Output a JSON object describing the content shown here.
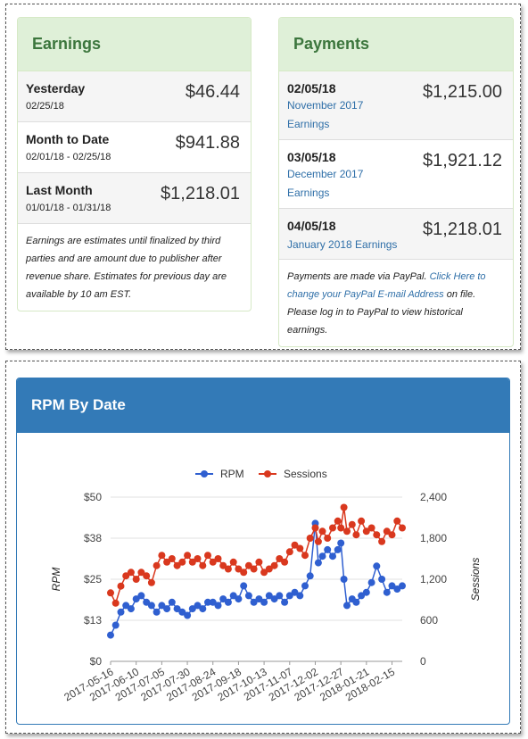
{
  "earnings": {
    "title": "Earnings",
    "rows": [
      {
        "label": "Yesterday",
        "date": "02/25/18",
        "amount": "$46.44"
      },
      {
        "label": "Month to Date",
        "date": "02/01/18 - 02/25/18",
        "amount": "$941.88"
      },
      {
        "label": "Last Month",
        "date": "01/01/18 - 01/31/18",
        "amount": "$1,218.01"
      }
    ],
    "note": "Earnings are estimates until finalized by third parties and are amount due to publisher after revenue share. Estimates for previous day are available by 10 am EST."
  },
  "payments": {
    "title": "Payments",
    "rows": [
      {
        "date": "02/05/18",
        "period_line1": "November 2017",
        "period_line2": "Earnings",
        "amount": "$1,215.00"
      },
      {
        "date": "03/05/18",
        "period_line1": "December 2017",
        "period_line2": "Earnings",
        "amount": "$1,921.12"
      },
      {
        "date": "04/05/18",
        "period_line1": "January 2018 Earnings",
        "period_line2": "",
        "amount": "$1,218.01"
      }
    ],
    "note_prefix": "Payments are made via PayPal. ",
    "note_link": "Click Here to change your PayPal E-mail Address",
    "note_suffix": " on file.",
    "note_line2": "Please log in to PayPal to view historical earnings."
  },
  "rpm_panel": {
    "title": "RPM By Date"
  },
  "chart_data": {
    "type": "line",
    "legend_position": "top-center",
    "colors": {
      "RPM": "#2f5fd0",
      "Sessions": "#d9381e"
    },
    "ylabel_left": "RPM",
    "ylabel_right": "Sessions",
    "y_left_ticks": [
      "$50",
      "$38",
      "$25",
      "$13",
      "$0"
    ],
    "y_right_ticks": [
      "2,400",
      "1,800",
      "1,200",
      "600",
      "0"
    ],
    "ylim_left": [
      0,
      50
    ],
    "ylim_right": [
      0,
      2400
    ],
    "x_ticks": [
      "2017-05-16",
      "2017-06-10",
      "2017-07-05",
      "2017-07-30",
      "2017-08-24",
      "2017-09-18",
      "2017-10-13",
      "2017-11-07",
      "2017-12-02",
      "2017-12-27",
      "2018-01-21",
      "2018-02-15"
    ],
    "x_range": [
      "2017-05-16",
      "2018-02-25"
    ],
    "series": [
      {
        "name": "RPM",
        "axis": "left",
        "points": [
          [
            "2017-05-16",
            8
          ],
          [
            "2017-05-21",
            11
          ],
          [
            "2017-05-26",
            15
          ],
          [
            "2017-05-31",
            17
          ],
          [
            "2017-06-05",
            16
          ],
          [
            "2017-06-10",
            19
          ],
          [
            "2017-06-15",
            20
          ],
          [
            "2017-06-20",
            18
          ],
          [
            "2017-06-25",
            17
          ],
          [
            "2017-06-30",
            15
          ],
          [
            "2017-07-05",
            17
          ],
          [
            "2017-07-10",
            16
          ],
          [
            "2017-07-15",
            18
          ],
          [
            "2017-07-20",
            16
          ],
          [
            "2017-07-25",
            15
          ],
          [
            "2017-07-30",
            14
          ],
          [
            "2017-08-04",
            16
          ],
          [
            "2017-08-09",
            17
          ],
          [
            "2017-08-14",
            16
          ],
          [
            "2017-08-19",
            18
          ],
          [
            "2017-08-24",
            18
          ],
          [
            "2017-08-29",
            17
          ],
          [
            "2017-09-03",
            19
          ],
          [
            "2017-09-08",
            18
          ],
          [
            "2017-09-13",
            20
          ],
          [
            "2017-09-18",
            19
          ],
          [
            "2017-09-23",
            23
          ],
          [
            "2017-09-28",
            20
          ],
          [
            "2017-10-03",
            18
          ],
          [
            "2017-10-08",
            19
          ],
          [
            "2017-10-13",
            18
          ],
          [
            "2017-10-18",
            20
          ],
          [
            "2017-10-23",
            19
          ],
          [
            "2017-10-28",
            20
          ],
          [
            "2017-11-02",
            18
          ],
          [
            "2017-11-07",
            20
          ],
          [
            "2017-11-12",
            21
          ],
          [
            "2017-11-17",
            20
          ],
          [
            "2017-11-22",
            23
          ],
          [
            "2017-11-27",
            26
          ],
          [
            "2017-12-02",
            42
          ],
          [
            "2017-12-05",
            30
          ],
          [
            "2017-12-09",
            32
          ],
          [
            "2017-12-14",
            34
          ],
          [
            "2017-12-19",
            32
          ],
          [
            "2017-12-24",
            34
          ],
          [
            "2017-12-27",
            36
          ],
          [
            "2017-12-30",
            25
          ],
          [
            "2018-01-02",
            17
          ],
          [
            "2018-01-07",
            19
          ],
          [
            "2018-01-11",
            18
          ],
          [
            "2018-01-16",
            20
          ],
          [
            "2018-01-21",
            21
          ],
          [
            "2018-01-26",
            24
          ],
          [
            "2018-01-31",
            29
          ],
          [
            "2018-02-05",
            25
          ],
          [
            "2018-02-10",
            21
          ],
          [
            "2018-02-15",
            23
          ],
          [
            "2018-02-20",
            22
          ],
          [
            "2018-02-25",
            23
          ]
        ]
      },
      {
        "name": "Sessions",
        "axis": "right",
        "points": [
          [
            "2017-05-16",
            1000
          ],
          [
            "2017-05-21",
            850
          ],
          [
            "2017-05-26",
            1100
          ],
          [
            "2017-05-31",
            1250
          ],
          [
            "2017-06-05",
            1300
          ],
          [
            "2017-06-10",
            1200
          ],
          [
            "2017-06-15",
            1300
          ],
          [
            "2017-06-20",
            1250
          ],
          [
            "2017-06-25",
            1150
          ],
          [
            "2017-06-30",
            1400
          ],
          [
            "2017-07-05",
            1550
          ],
          [
            "2017-07-10",
            1450
          ],
          [
            "2017-07-15",
            1500
          ],
          [
            "2017-07-20",
            1400
          ],
          [
            "2017-07-25",
            1450
          ],
          [
            "2017-07-30",
            1550
          ],
          [
            "2017-08-04",
            1450
          ],
          [
            "2017-08-09",
            1500
          ],
          [
            "2017-08-14",
            1400
          ],
          [
            "2017-08-19",
            1550
          ],
          [
            "2017-08-24",
            1450
          ],
          [
            "2017-08-29",
            1500
          ],
          [
            "2017-09-03",
            1400
          ],
          [
            "2017-09-08",
            1350
          ],
          [
            "2017-09-13",
            1450
          ],
          [
            "2017-09-18",
            1350
          ],
          [
            "2017-09-23",
            1300
          ],
          [
            "2017-09-28",
            1400
          ],
          [
            "2017-10-03",
            1350
          ],
          [
            "2017-10-08",
            1450
          ],
          [
            "2017-10-13",
            1300
          ],
          [
            "2017-10-18",
            1350
          ],
          [
            "2017-10-23",
            1400
          ],
          [
            "2017-10-28",
            1500
          ],
          [
            "2017-11-02",
            1450
          ],
          [
            "2017-11-07",
            1600
          ],
          [
            "2017-11-12",
            1700
          ],
          [
            "2017-11-17",
            1650
          ],
          [
            "2017-11-22",
            1550
          ],
          [
            "2017-11-27",
            1800
          ],
          [
            "2017-12-02",
            1950
          ],
          [
            "2017-12-05",
            1750
          ],
          [
            "2017-12-09",
            1900
          ],
          [
            "2017-12-14",
            1800
          ],
          [
            "2017-12-19",
            1950
          ],
          [
            "2017-12-24",
            2050
          ],
          [
            "2017-12-27",
            1950
          ],
          [
            "2017-12-30",
            2250
          ],
          [
            "2018-01-02",
            1900
          ],
          [
            "2018-01-07",
            2000
          ],
          [
            "2018-01-11",
            1850
          ],
          [
            "2018-01-16",
            2050
          ],
          [
            "2018-01-21",
            1900
          ],
          [
            "2018-01-26",
            1950
          ],
          [
            "2018-01-31",
            1850
          ],
          [
            "2018-02-05",
            1750
          ],
          [
            "2018-02-10",
            1900
          ],
          [
            "2018-02-15",
            1850
          ],
          [
            "2018-02-20",
            2050
          ],
          [
            "2018-02-25",
            1950
          ]
        ]
      }
    ]
  }
}
